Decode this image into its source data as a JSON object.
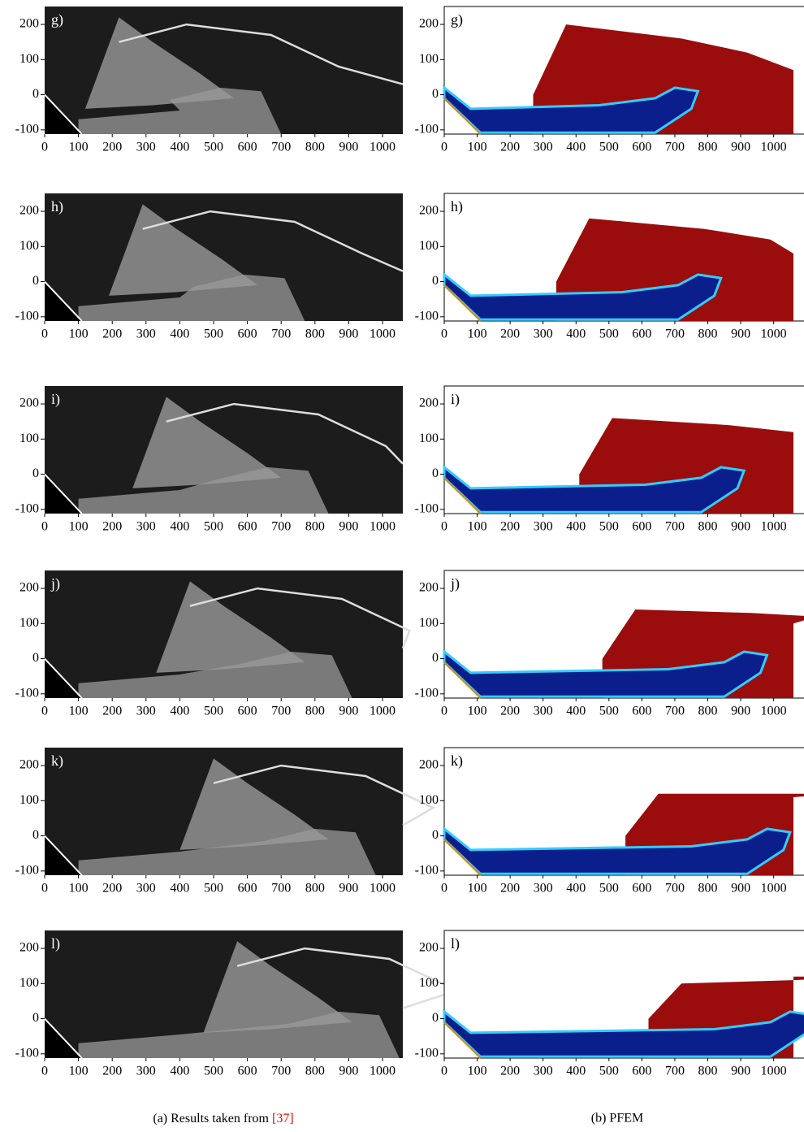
{
  "axes": {
    "xlim": [
      0,
      1060
    ],
    "ylim": [
      -112,
      251
    ],
    "xticks": [
      0,
      100,
      200,
      300,
      400,
      500,
      600,
      700,
      800,
      900,
      1000
    ],
    "yticks": [
      -100,
      0,
      100,
      200
    ]
  },
  "columns": [
    {
      "caption": "(a)  Results taken from",
      "reference": "[37]",
      "panels": [
        {
          "label": "g)"
        },
        {
          "label": "h)"
        },
        {
          "label": "i)"
        },
        {
          "label": "j)"
        },
        {
          "label": "k)"
        },
        {
          "label": "l)"
        }
      ]
    },
    {
      "caption": "(b)  PFEM",
      "panels": [
        {
          "label": "g)"
        },
        {
          "label": "h)"
        },
        {
          "label": "i)"
        },
        {
          "label": "j)"
        },
        {
          "label": "k)"
        },
        {
          "label": "l)"
        }
      ]
    }
  ]
}
